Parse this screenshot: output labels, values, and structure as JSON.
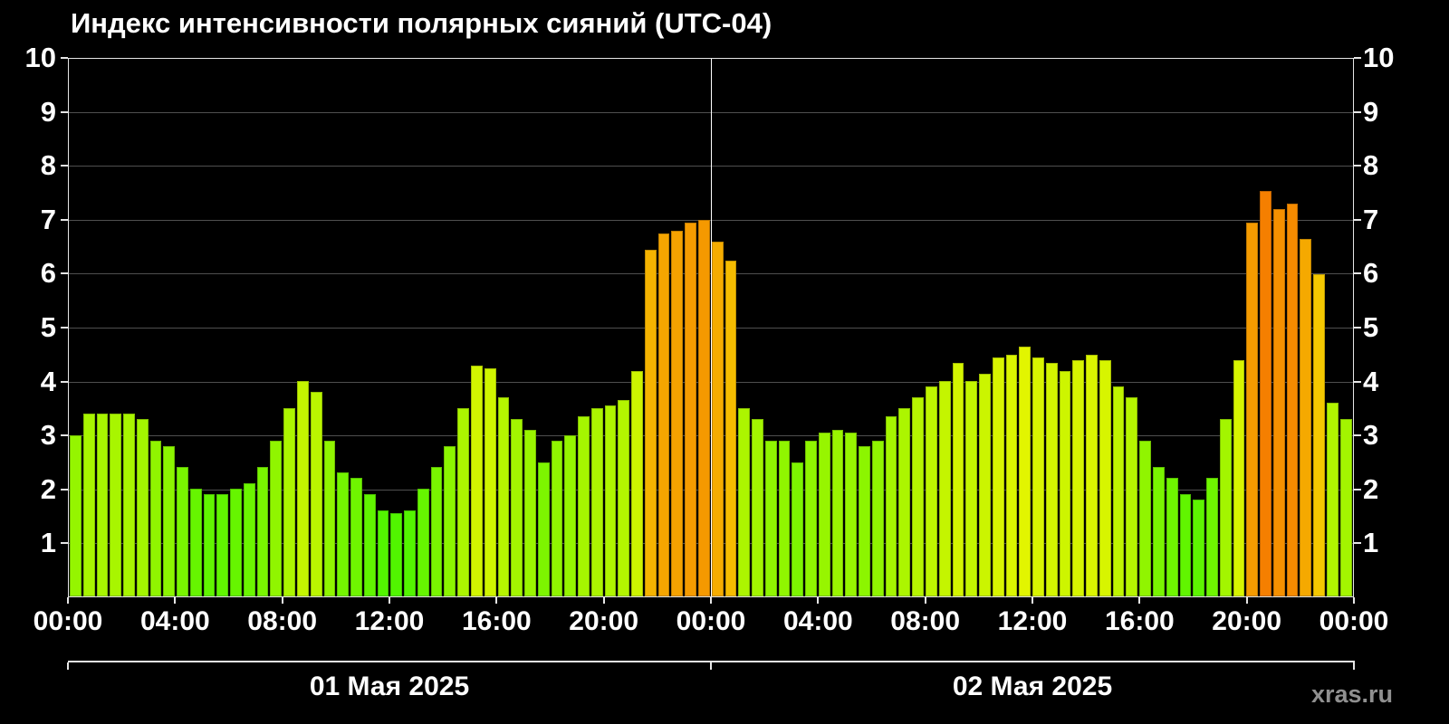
{
  "title": "Индекс интенсивности полярных сияний (UTC-04)",
  "watermark": "xras.ru",
  "chart_data": {
    "type": "bar",
    "title": "Индекс интенсивности полярных сияний (UTC-04)",
    "timezone_note": "UTC-04",
    "interval_minutes": 30,
    "ylim": [
      0,
      10
    ],
    "yticks": [
      "1",
      "2",
      "3",
      "4",
      "5",
      "6",
      "7",
      "8",
      "9",
      "10"
    ],
    "grid": true,
    "xtick_labels_per_day": [
      "00:00",
      "04:00",
      "08:00",
      "12:00",
      "16:00",
      "20:00"
    ],
    "x_end_label": "00:00",
    "days": [
      {
        "label": "01 Мая 2025",
        "values": [
          3.0,
          3.4,
          3.4,
          3.4,
          3.4,
          3.3,
          2.9,
          2.8,
          2.4,
          2.0,
          1.9,
          1.9,
          2.0,
          2.1,
          2.4,
          2.9,
          3.5,
          4.0,
          3.8,
          2.9,
          2.3,
          2.2,
          1.9,
          1.6,
          1.55,
          1.6,
          2.0,
          2.4,
          2.8,
          3.5,
          4.3,
          4.25,
          3.7,
          3.3,
          3.1,
          2.5,
          2.9,
          3.0,
          3.35,
          3.5,
          3.55,
          3.65,
          4.2,
          6.45,
          6.75,
          6.8,
          6.95,
          7.0
        ]
      },
      {
        "label": "02 Мая 2025",
        "values": [
          6.6,
          6.25,
          3.5,
          3.3,
          2.9,
          2.9,
          2.5,
          2.9,
          3.05,
          3.1,
          3.05,
          2.8,
          2.9,
          3.35,
          3.5,
          3.7,
          3.9,
          4.0,
          4.35,
          4.0,
          4.15,
          4.45,
          4.5,
          4.65,
          4.45,
          4.35,
          4.2,
          4.4,
          4.5,
          4.4,
          3.9,
          3.7,
          2.9,
          2.4,
          2.2,
          1.9,
          1.8,
          2.2,
          3.3,
          4.4,
          6.95,
          7.55,
          7.2,
          7.3,
          6.65,
          6.0,
          3.6,
          3.3
        ]
      }
    ],
    "colors": {
      "background": "#000000",
      "grid": "#4f4f4f",
      "axis": "#e6e6e6",
      "text": "#ffffff",
      "watermark": "#909090",
      "day_boundary": "#ffffff",
      "bar_low_green": "#3ce600",
      "bar_mid_yellow": "#e8f000",
      "bar_high_orange": "#ff9900",
      "bar_peak_orange": "#ff7700",
      "hue_base": 118,
      "hue_slope": 11.5,
      "hue_min": 28,
      "hue_max": 110
    },
    "legend": null
  }
}
